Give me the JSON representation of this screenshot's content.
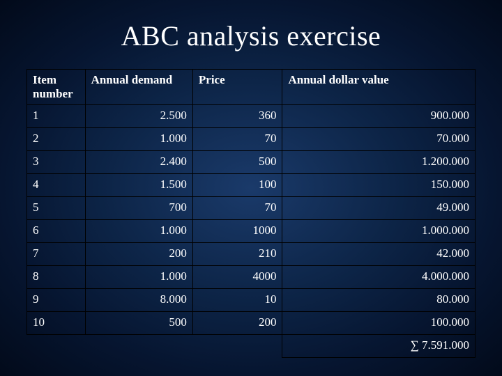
{
  "title": "ABC analysis exercise",
  "table": {
    "columns": [
      "Item number",
      "Annual demand",
      "Price",
      "Annual dollar value"
    ],
    "rows": [
      [
        "1",
        "2.500",
        "360",
        "900.000"
      ],
      [
        "2",
        "1.000",
        "70",
        "70.000"
      ],
      [
        "3",
        "2.400",
        "500",
        "1.200.000"
      ],
      [
        "4",
        "1.500",
        "100",
        "150.000"
      ],
      [
        "5",
        "700",
        "70",
        "49.000"
      ],
      [
        "6",
        "1.000",
        "1000",
        "1.000.000"
      ],
      [
        "7",
        "200",
        "210",
        "42.000"
      ],
      [
        "8",
        "1.000",
        "4000",
        "4.000.000"
      ],
      [
        "9",
        "8.000",
        "10",
        "80.000"
      ],
      [
        "10",
        "500",
        "200",
        "100.000"
      ]
    ],
    "total": "∑ 7.591.000"
  },
  "style": {
    "background_gradient": [
      "#1a3a6a",
      "#0d2548",
      "#061530",
      "#020a1a"
    ],
    "text_color": "#ffffff",
    "border_color": "#000000",
    "title_fontsize": 40,
    "cell_fontsize": 17,
    "font_family": "Times New Roman"
  }
}
